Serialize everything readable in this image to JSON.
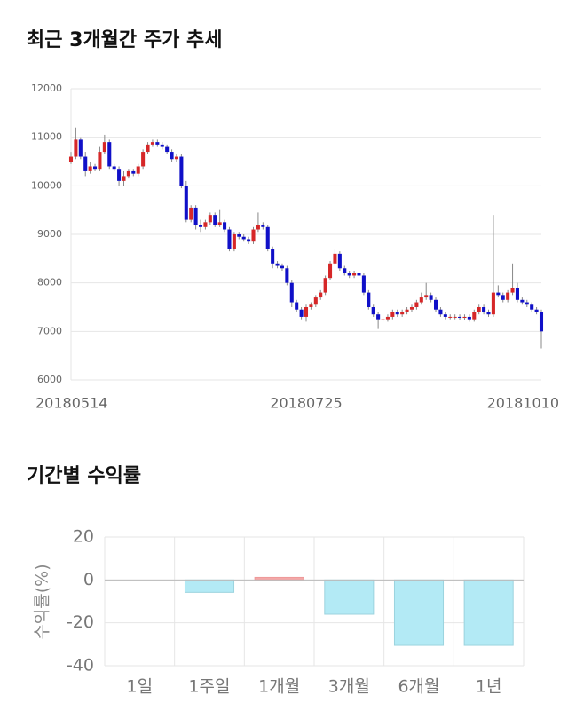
{
  "chart_data": [
    {
      "type": "candlestick",
      "title": "최근 3개월간 주가 추세",
      "categories": [
        "20180514",
        null,
        null,
        null,
        null,
        null,
        null,
        null,
        null,
        null,
        null,
        null,
        null,
        null,
        null,
        null,
        null,
        null,
        null,
        null,
        null,
        null,
        null,
        null,
        null,
        null,
        null,
        null,
        null,
        null,
        null,
        null,
        null,
        null,
        null,
        null,
        null,
        null,
        null,
        null,
        null,
        null,
        null,
        null,
        null,
        null,
        null,
        null,
        null,
        "20180725",
        null,
        null,
        null,
        null,
        null,
        null,
        null,
        null,
        null,
        null,
        null,
        null,
        null,
        null,
        null,
        null,
        null,
        null,
        null,
        null,
        null,
        null,
        null,
        null,
        null,
        null,
        null,
        null,
        null,
        null,
        null,
        null,
        null,
        null,
        null,
        null,
        null,
        null,
        null,
        null,
        null,
        null,
        null,
        null,
        null,
        null,
        null,
        null,
        "20181010"
      ],
      "open": [
        10500,
        10600,
        10950,
        10600,
        10300,
        10400,
        10350,
        10700,
        10900,
        10400,
        10350,
        10100,
        10200,
        10300,
        10250,
        10400,
        10700,
        10850,
        10900,
        10850,
        10800,
        10700,
        10550,
        10600,
        10000,
        9300,
        9550,
        9200,
        9150,
        9250,
        9400,
        9200,
        9250,
        9100,
        8700,
        9000,
        8950,
        8900,
        8850,
        9100,
        9200,
        9150,
        8700,
        8400,
        8350,
        8300,
        8000,
        7600,
        7450,
        7300,
        7500,
        7550,
        7700,
        7800,
        8100,
        8400,
        8600,
        8300,
        8200,
        8150,
        8200,
        8150,
        7800,
        7500,
        7350,
        7250,
        7250,
        7300,
        7400,
        7350,
        7400,
        7450,
        7500,
        7600,
        7700,
        7750,
        7650,
        7450,
        7350,
        7300,
        7300,
        7300,
        7280,
        7300,
        7250,
        7400,
        7500,
        7400,
        7350,
        7800,
        7750,
        7650,
        7800,
        7900,
        7650,
        7600,
        7550,
        7450,
        7400
      ],
      "high": [
        10700,
        11200,
        11000,
        10700,
        10500,
        10450,
        10800,
        11050,
        10950,
        10450,
        10400,
        10300,
        10350,
        10350,
        10450,
        10750,
        10900,
        10950,
        10950,
        10900,
        10850,
        10750,
        10650,
        10650,
        10100,
        9600,
        9600,
        9300,
        9300,
        9450,
        9450,
        9500,
        9300,
        9150,
        9050,
        9050,
        9000,
        8950,
        9150,
        9450,
        9250,
        9200,
        8750,
        8450,
        8400,
        8350,
        8050,
        7650,
        7500,
        7550,
        7600,
        7750,
        7850,
        8150,
        8450,
        8700,
        8650,
        8350,
        8250,
        8250,
        8250,
        8200,
        7850,
        7550,
        7400,
        7300,
        7350,
        7450,
        7450,
        7450,
        7500,
        7550,
        7650,
        7800,
        8000,
        7800,
        7700,
        7500,
        7400,
        7350,
        7350,
        7350,
        7350,
        7350,
        7450,
        7550,
        7550,
        7450,
        9400,
        7950,
        7800,
        7850,
        8400,
        8000,
        7700,
        7650,
        7600,
        7500,
        7450
      ],
      "low": [
        10450,
        10550,
        10550,
        10200,
        10250,
        10300,
        10300,
        10650,
        10350,
        10300,
        10000,
        10000,
        10150,
        10200,
        10200,
        10350,
        10650,
        10800,
        10800,
        10750,
        10650,
        10500,
        10500,
        9950,
        9250,
        9250,
        9100,
        9050,
        9100,
        9200,
        9150,
        9150,
        9050,
        8650,
        8650,
        8900,
        8850,
        8800,
        8800,
        9050,
        9100,
        8650,
        8300,
        8300,
        8250,
        7950,
        7500,
        7400,
        7250,
        7200,
        7450,
        7500,
        7650,
        7750,
        8050,
        8350,
        8250,
        8150,
        8100,
        8100,
        8100,
        7750,
        7450,
        7300,
        7050,
        7200,
        7200,
        7250,
        7300,
        7300,
        7350,
        7400,
        7450,
        7550,
        7650,
        7600,
        7400,
        7300,
        7250,
        7250,
        7250,
        7230,
        7230,
        7200,
        7200,
        7350,
        7350,
        7300,
        7300,
        7700,
        7600,
        7600,
        7750,
        7600,
        7550,
        7500,
        7400,
        7350,
        6650
      ],
      "close": [
        10600,
        10950,
        10600,
        10300,
        10400,
        10350,
        10700,
        10900,
        10400,
        10350,
        10100,
        10200,
        10300,
        10250,
        10400,
        10700,
        10850,
        10900,
        10850,
        10800,
        10700,
        10550,
        10600,
        10000,
        9300,
        9550,
        9200,
        9150,
        9250,
        9400,
        9200,
        9250,
        9100,
        8700,
        9000,
        8950,
        8900,
        8850,
        9100,
        9200,
        9150,
        8700,
        8400,
        8350,
        8300,
        8000,
        7600,
        7450,
        7300,
        7500,
        7550,
        7700,
        7800,
        8100,
        8400,
        8600,
        8300,
        8200,
        8150,
        8200,
        8150,
        7800,
        7500,
        7350,
        7250,
        7250,
        7300,
        7400,
        7350,
        7400,
        7450,
        7500,
        7600,
        7700,
        7750,
        7650,
        7450,
        7350,
        7300,
        7300,
        7300,
        7280,
        7300,
        7250,
        7400,
        7500,
        7400,
        7350,
        7800,
        7750,
        7650,
        7800,
        7900,
        7650,
        7600,
        7550,
        7450,
        7400,
        7000
      ],
      "up_color": "#d62728",
      "down_color": "#1010c8",
      "ylim": [
        6000,
        12000
      ],
      "yticks": [
        6000,
        7000,
        8000,
        9000,
        10000,
        11000,
        12000
      ],
      "grid": true
    },
    {
      "type": "bar",
      "title": "기간별 수익률",
      "y_label": "수익률(%)",
      "categories": [
        "1일",
        "1주일",
        "1개월",
        "3개월",
        "6개월",
        "1년"
      ],
      "values": [
        0,
        -5.8,
        1.2,
        -16,
        -30.5,
        -30.5
      ],
      "positive_color": "#f4a8a8",
      "negative_color": "#b3eaf5",
      "ylim": [
        -40,
        20
      ],
      "yticks": [
        -40,
        -20,
        0,
        20
      ],
      "grid": true
    }
  ]
}
